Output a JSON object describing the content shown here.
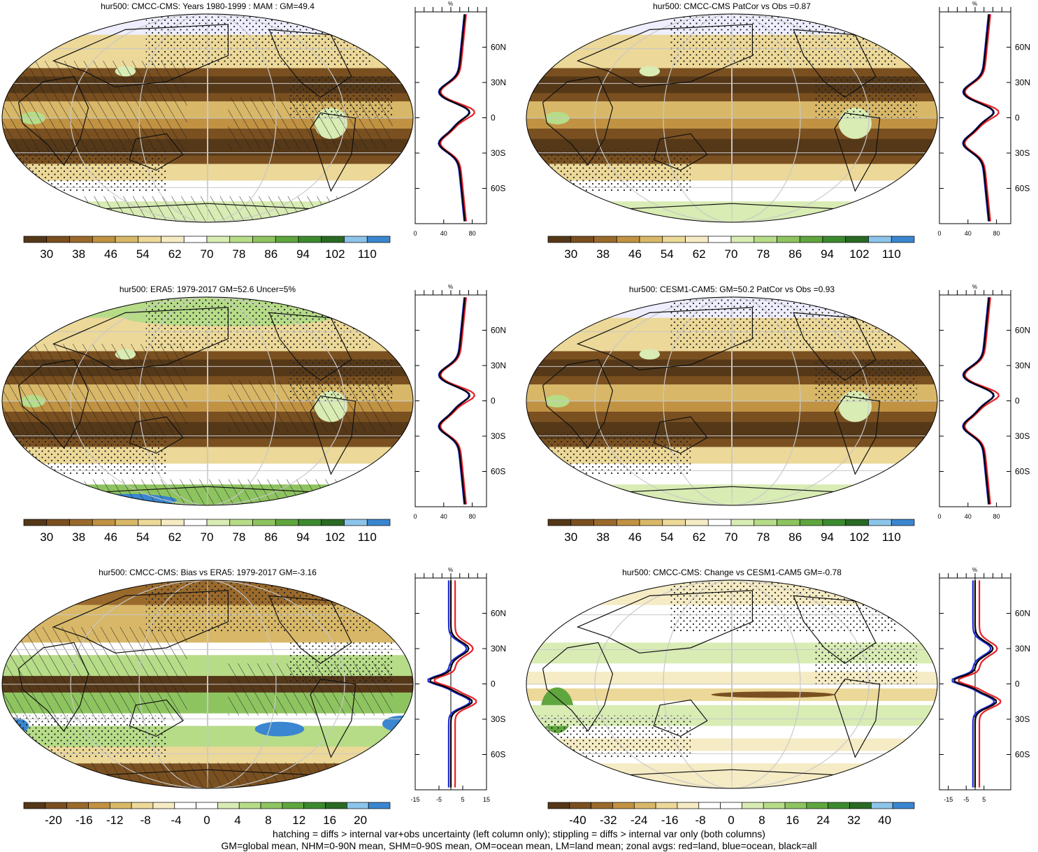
{
  "panels": [
    {
      "title": "hur500: CMCC-CMS: Years 1980-1999 : MAM : GM=49.4",
      "colorbar": {
        "type": "abs",
        "labels": [
          "30",
          "38",
          "46",
          "54",
          "62",
          "70",
          "78",
          "86",
          "94",
          "102",
          "110"
        ]
      },
      "zonal": {
        "x_ticks": [
          "0",
          "40",
          "80"
        ],
        "x_unit": "%",
        "xlim": [
          0,
          100
        ],
        "zero_line": false
      }
    },
    {
      "title": "hur500: CMCC-CMS PatCor vs Obs =0.87",
      "colorbar": {
        "type": "abs",
        "labels": [
          "30",
          "38",
          "46",
          "54",
          "62",
          "70",
          "78",
          "86",
          "94",
          "102",
          "110"
        ]
      },
      "zonal": {
        "x_ticks": [
          "0",
          "40",
          "80"
        ],
        "x_unit": "%",
        "xlim": [
          0,
          100
        ],
        "zero_line": false
      }
    },
    {
      "title": "hur500: ERA5: 1979-2017 GM=52.6 Uncer=5%",
      "colorbar": {
        "type": "abs",
        "labels": [
          "30",
          "38",
          "46",
          "54",
          "62",
          "70",
          "78",
          "86",
          "94",
          "102",
          "110"
        ]
      },
      "zonal": {
        "x_ticks": [
          "0",
          "40",
          "80"
        ],
        "x_unit": "%",
        "xlim": [
          0,
          100
        ],
        "zero_line": false
      }
    },
    {
      "title": "hur500: CESM1-CAM5: GM=50.2 PatCor vs Obs =0.93",
      "colorbar": {
        "type": "abs",
        "labels": [
          "30",
          "38",
          "46",
          "54",
          "62",
          "70",
          "78",
          "86",
          "94",
          "102",
          "110"
        ]
      },
      "zonal": {
        "x_ticks": [
          "0",
          "40",
          "80"
        ],
        "x_unit": "%",
        "xlim": [
          0,
          100
        ],
        "zero_line": false
      }
    },
    {
      "title": "hur500: CMCC-CMS: Bias vs ERA5: 1979-2017 GM=-3.16",
      "colorbar": {
        "type": "diff",
        "labels": [
          "-20",
          "-16",
          "-12",
          "-8",
          "-4",
          "0",
          "4",
          "8",
          "12",
          "16",
          "20"
        ]
      },
      "zonal": {
        "x_ticks": [
          "-15",
          "-5",
          "5",
          "15"
        ],
        "x_unit": "%",
        "xlim": [
          -15,
          15
        ],
        "zero_line": true
      }
    },
    {
      "title": "hur500: CMCC-CMS: Change vs CESM1-CAM5 GM=-0.78",
      "colorbar": {
        "type": "diff",
        "labels": [
          "-40",
          "-32",
          "-24",
          "-16",
          "-8",
          "0",
          "8",
          "16",
          "24",
          "32",
          "40"
        ]
      },
      "zonal": {
        "x_ticks": [
          "-15",
          "-5",
          "5"
        ],
        "x_unit": "%",
        "xlim": [
          -20,
          20
        ],
        "zero_line": true
      }
    }
  ],
  "lat_labels": [
    "60N",
    "30N",
    "0",
    "30S",
    "60S"
  ],
  "colors": {
    "land": "#e8202a",
    "ocean": "#1f2fd8",
    "all": "#000000",
    "abs_scale": [
      "#553818",
      "#7a5020",
      "#9a6a2c",
      "#c09242",
      "#d8b868",
      "#ecd898",
      "#f5ebc4",
      "#ffffff",
      "#d8ecb4",
      "#b6dc88",
      "#8ec460",
      "#60a63e",
      "#3c8a2e",
      "#2a6a24",
      "#8cc4ea",
      "#3a86d0"
    ],
    "diff_scale": [
      "#553818",
      "#7a5020",
      "#9a6a2c",
      "#c09242",
      "#d8b868",
      "#ecd898",
      "#f5ebc4",
      "#ffffff",
      "#ffffff",
      "#d8ecb4",
      "#b6dc88",
      "#8ec460",
      "#60a63e",
      "#3c8a2e",
      "#2a6a24",
      "#8cc4ea",
      "#3a86d0"
    ]
  },
  "footer": {
    "line1": "hatching = diffs > internal var+obs uncertainty (left column only); stippling = diffs > internal var only (both columns)",
    "line2": "GM=global mean, NHM=0-90N mean, SHM=0-90S mean, OM=ocean mean, LM=land mean; zonal avgs: red=land, blue=ocean, black=all"
  }
}
